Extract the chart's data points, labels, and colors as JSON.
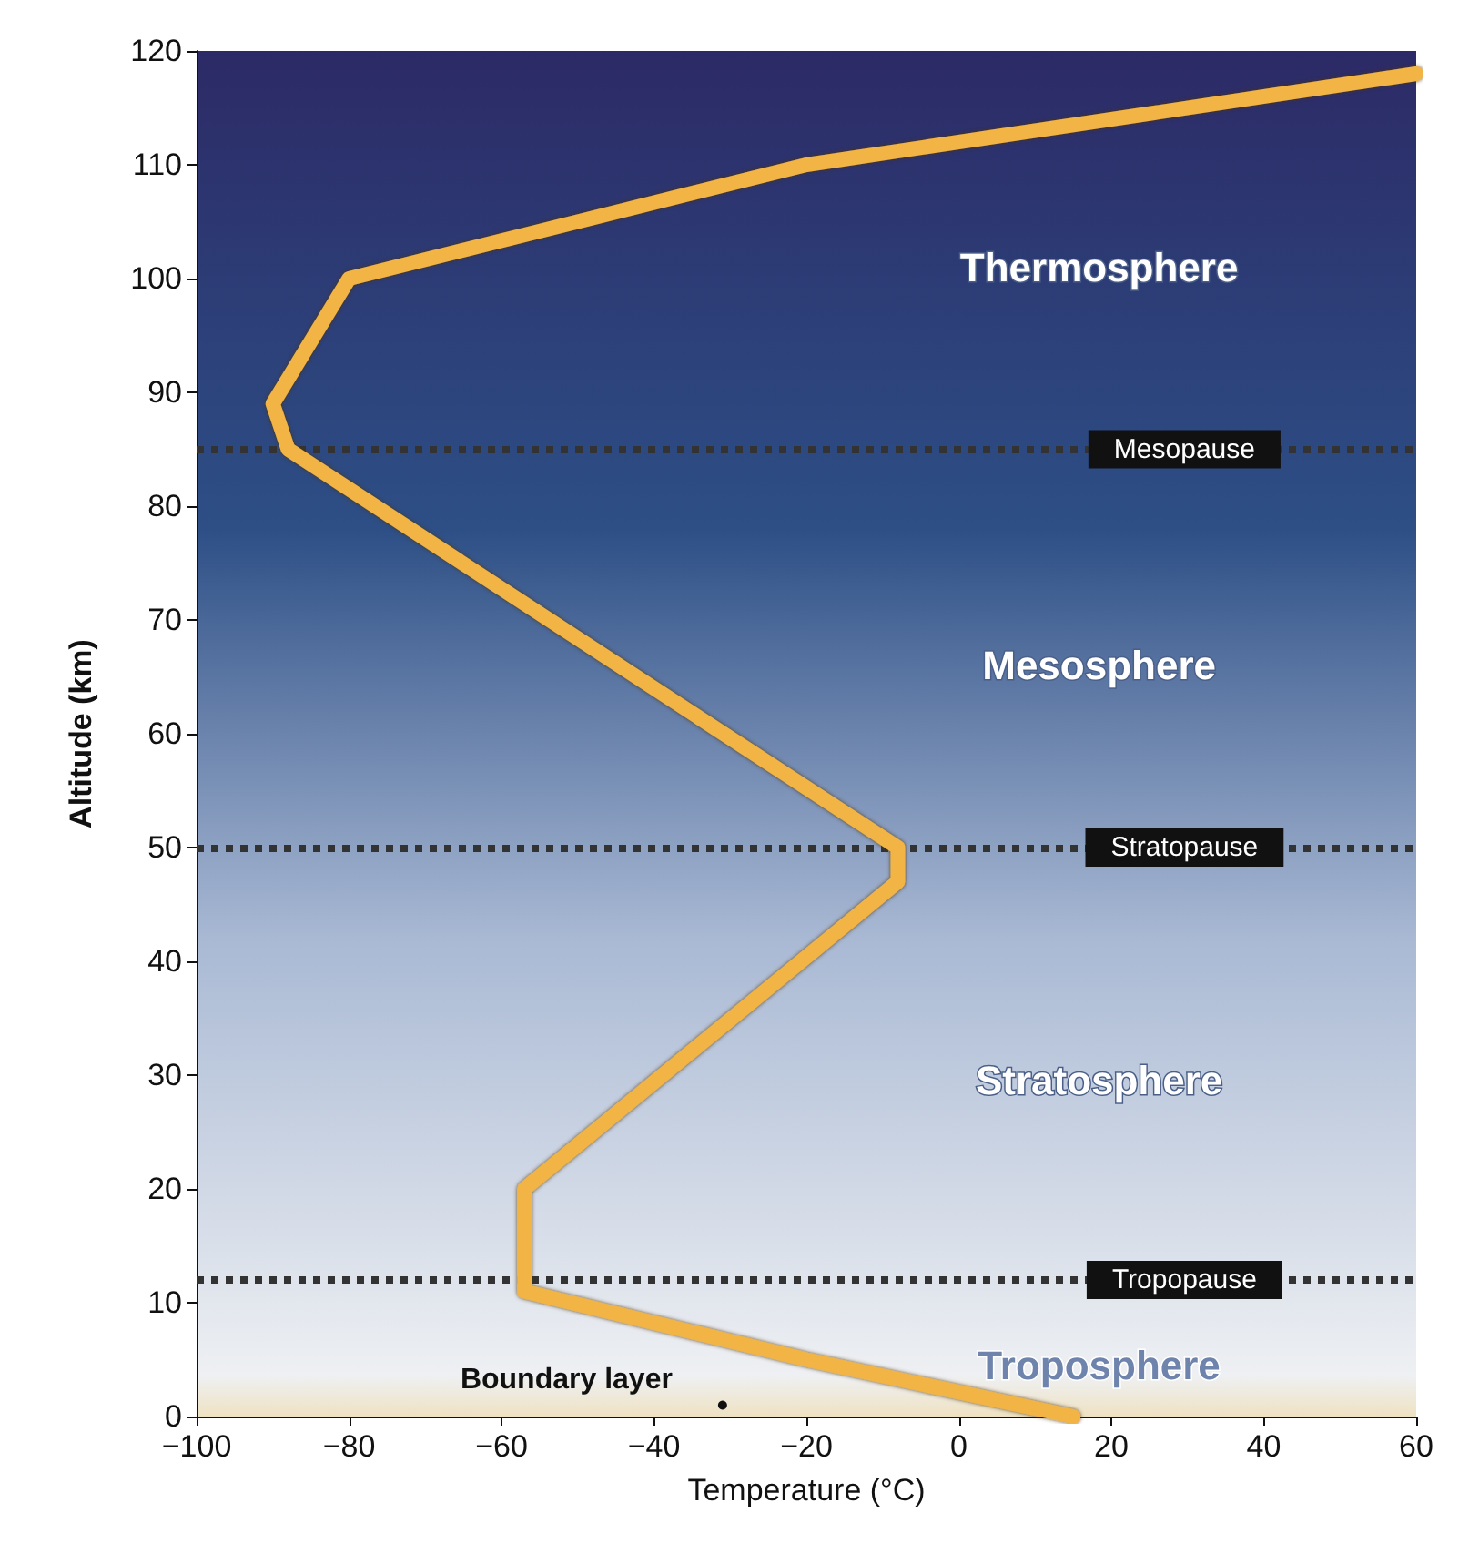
{
  "chart_data": {
    "type": "line",
    "xlabel": "Temperature (°C)",
    "ylabel": "Altitude (km)",
    "x": [
      15,
      -20,
      -57,
      -57,
      -8,
      -8,
      -88,
      -90,
      -80,
      -50,
      -20,
      60
    ],
    "series": [
      {
        "color": "#f2b544",
        "values": [
          0,
          5,
          11,
          20,
          47,
          50,
          85,
          89,
          100,
          105,
          110,
          118
        ]
      }
    ],
    "xlim": [
      -100,
      60
    ],
    "xticks": [
      {
        "value": -100,
        "label": "−100"
      },
      {
        "value": -80,
        "label": "−80"
      },
      {
        "value": -60,
        "label": "−60"
      },
      {
        "value": -40,
        "label": "−40"
      },
      {
        "value": -20,
        "label": "−20"
      },
      0,
      20,
      40,
      60
    ],
    "ylim": [
      0,
      120
    ],
    "yticks": [
      0,
      10,
      20,
      30,
      40,
      50,
      60,
      70,
      80,
      90,
      100,
      110,
      120
    ],
    "ref_lines": [
      {
        "axis": "y",
        "value": 85,
        "label": "Mesopause",
        "line_style": "dotted",
        "color": "#333333"
      },
      {
        "axis": "y",
        "value": 50,
        "label": "Stratopause",
        "line_style": "dotted",
        "color": "#333333"
      },
      {
        "axis": "y",
        "value": 12,
        "label": "Tropopause",
        "line_style": "dotted",
        "color": "#333333"
      }
    ],
    "annotations": [
      "Thermosphere",
      "Mesosphere",
      "Stratosphere",
      "Troposphere",
      {
        "text": "Boundary layer",
        "x": -31,
        "y": 1
      }
    ],
    "grid": false,
    "line_style": "solid"
  }
}
